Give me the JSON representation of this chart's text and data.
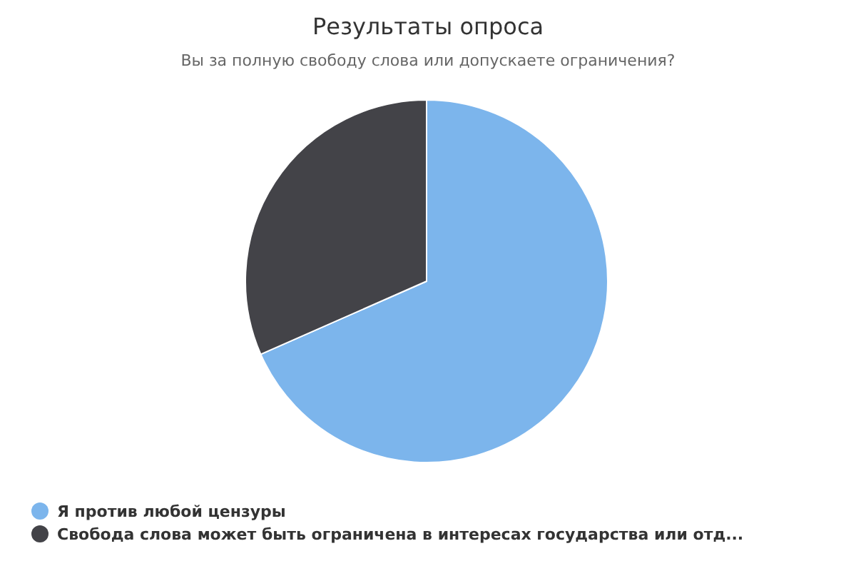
{
  "chart_data": {
    "type": "pie",
    "title": "Результаты опроса",
    "subtitle": "Вы за полную свободу слова или допускаете ограничения?",
    "categories": [
      "Я против любой цензуры",
      "Свобода слова может быть ограничена в интересах государства или отд..."
    ],
    "values": [
      68.4,
      31.6
    ],
    "colors": [
      "#7cb5ec",
      "#434348"
    ],
    "legend": "bottom left"
  }
}
